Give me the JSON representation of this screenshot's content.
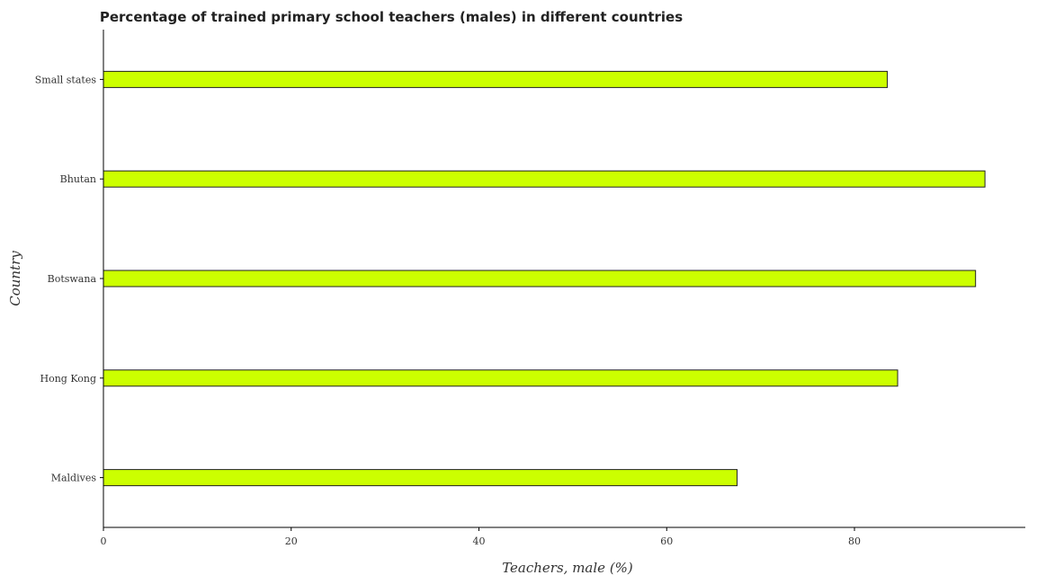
{
  "chart_data": {
    "type": "bar",
    "orientation": "horizontal",
    "title": "Percentage of trained primary school teachers (males) in different countries",
    "xlabel": "Teachers, male (%)",
    "ylabel": "Country",
    "categories": [
      "Small states",
      "Bhutan",
      "Botswana",
      "Hong Kong",
      "Maldives"
    ],
    "values": [
      83.5,
      93.9,
      92.9,
      84.6,
      67.5
    ],
    "xlim": [
      0,
      98.2
    ],
    "xticks": [
      0,
      20,
      40,
      60,
      80
    ],
    "bar_color": "#ccff00",
    "grid": false
  }
}
